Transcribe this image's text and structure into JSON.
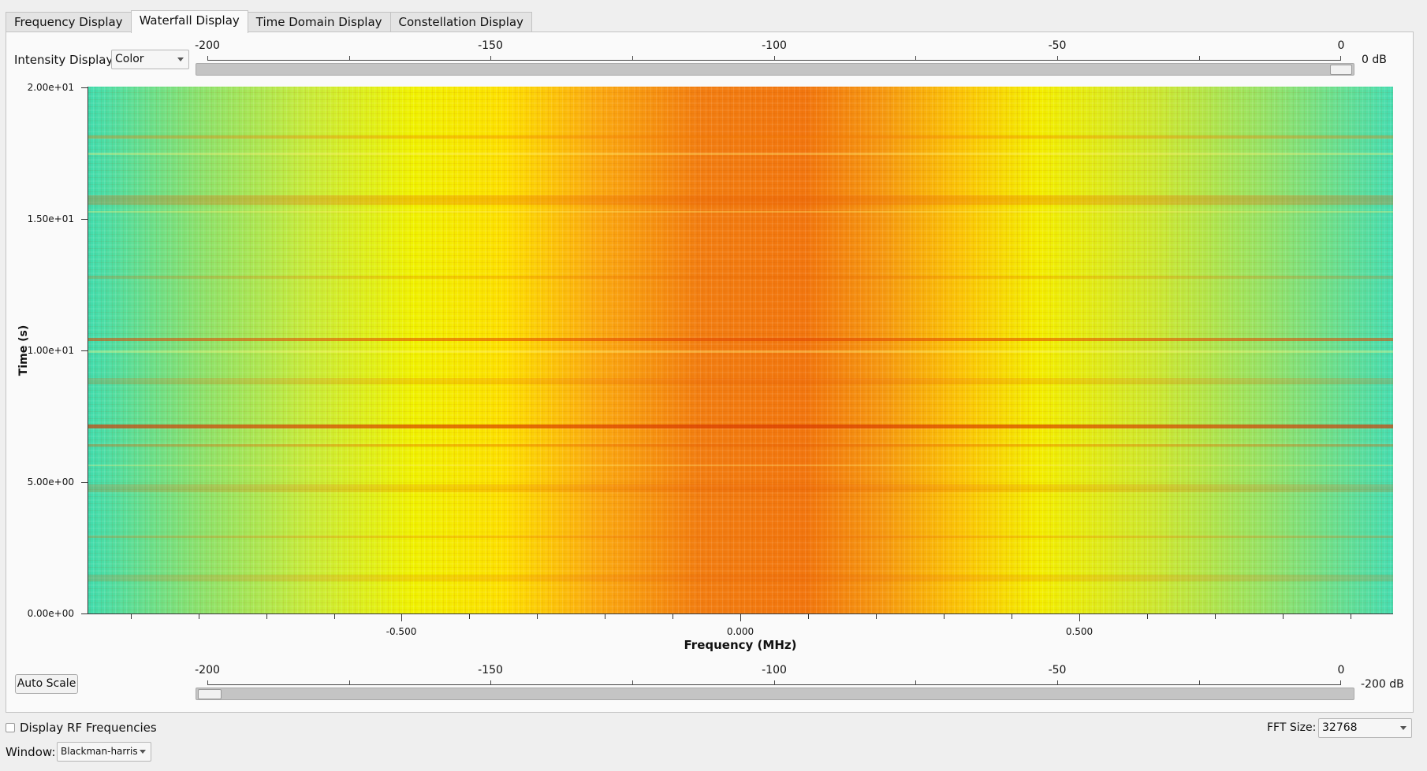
{
  "tabs": [
    {
      "label": "Frequency Display"
    },
    {
      "label": "Waterfall Display"
    },
    {
      "label": "Time Domain Display"
    },
    {
      "label": "Constellation Display"
    }
  ],
  "active_tab": "Waterfall Display",
  "intensity": {
    "label": "Intensity Display:",
    "value": "Color"
  },
  "top_scale": {
    "ticks": [
      "-200",
      "-150",
      "-100",
      "-50",
      "0"
    ],
    "value_label": "0 dB",
    "slider_value_db": 0
  },
  "bottom_scale": {
    "ticks": [
      "-200",
      "-150",
      "-100",
      "-50",
      "0"
    ],
    "value_label": "-200 dB",
    "slider_value_db": -200
  },
  "plot": {
    "ylabel": "Time (s)",
    "xlabel": "Frequency (MHz)",
    "yticks": [
      "2.00e+01",
      "1.50e+01",
      "1.00e+01",
      "5.00e+00",
      "0.00e+00"
    ],
    "xticks": [
      "-0.500",
      "0.000",
      "0.500"
    ]
  },
  "auto_scale_label": "Auto Scale",
  "display_rf": {
    "label": "Display RF Frequencies",
    "checked": false
  },
  "window": {
    "label": "Window:",
    "value": "Blackman-harris"
  },
  "fft": {
    "label": "FFT Size:",
    "value": "32768"
  }
}
